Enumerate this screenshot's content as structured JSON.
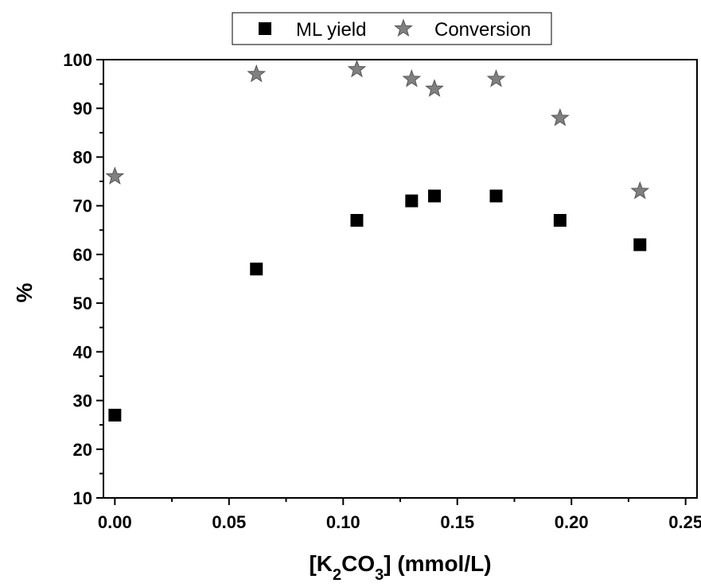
{
  "chart_data": {
    "type": "scatter",
    "xlabel": {
      "prefix": "[K",
      "sub1": "2",
      "mid": "CO",
      "sub2": "3",
      "suffix": "] (mmol/L)"
    },
    "ylabel": "%",
    "xlim": [
      -0.005,
      0.255
    ],
    "ylim": [
      10,
      100
    ],
    "x_ticks": [
      0.0,
      0.05,
      0.1,
      0.15,
      0.2,
      0.25
    ],
    "x_tick_labels": [
      "0.00",
      "0.05",
      "0.10",
      "0.15",
      "0.20",
      "0.25"
    ],
    "y_ticks": [
      10,
      20,
      30,
      40,
      50,
      60,
      70,
      80,
      90,
      100
    ],
    "y_tick_labels": [
      "10",
      "20",
      "30",
      "40",
      "50",
      "60",
      "70",
      "80",
      "90",
      "100"
    ],
    "grid": false,
    "legend_position": "top-center",
    "series": [
      {
        "name": "ML yield",
        "marker": "square",
        "color": "#000000",
        "x": [
          0.0,
          0.062,
          0.106,
          0.13,
          0.14,
          0.167,
          0.195,
          0.23
        ],
        "y": [
          27,
          57,
          67,
          71,
          72,
          72,
          67,
          62
        ]
      },
      {
        "name": "Conversion",
        "marker": "star",
        "color": "#808080",
        "x": [
          0.0,
          0.062,
          0.106,
          0.13,
          0.14,
          0.167,
          0.195,
          0.23
        ],
        "y": [
          76,
          97,
          98,
          96,
          94,
          96,
          88,
          73
        ]
      }
    ]
  }
}
